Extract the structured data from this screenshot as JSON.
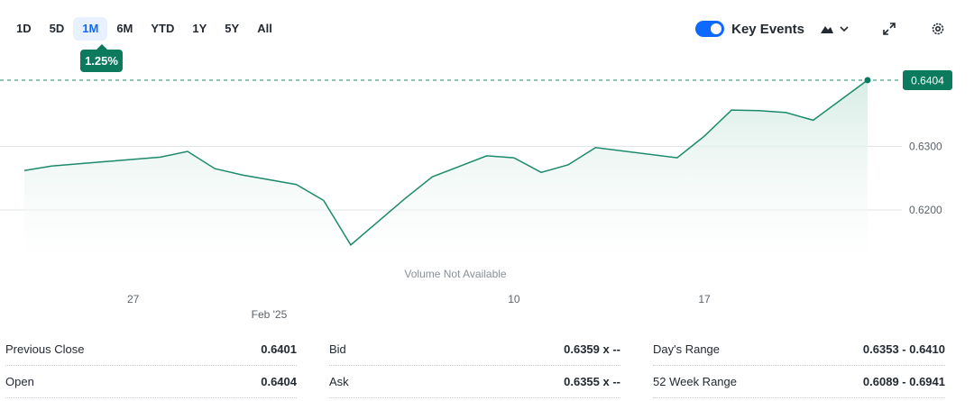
{
  "range_tabs": [
    "1D",
    "5D",
    "1M",
    "6M",
    "YTD",
    "1Y",
    "5Y",
    "All"
  ],
  "active_range": "1M",
  "change_badge": "1.25%",
  "key_events": {
    "label": "Key Events",
    "enabled": true
  },
  "icons": {
    "chart_type": "mountain-chart-icon",
    "expand": "expand-icon",
    "settings": "gear-icon"
  },
  "colors": {
    "line": "#1b8a6b",
    "accent": "#0f69ff",
    "badge": "#0b7a5d",
    "fill_top": "#d5ebe3"
  },
  "volume_note": "Volume Not Available",
  "chart_data": {
    "type": "area",
    "x": [
      "2025-01-23",
      "2025-01-24",
      "2025-01-26",
      "2025-01-28",
      "2025-01-29",
      "2025-01-30",
      "2025-01-31",
      "2025-02-02",
      "2025-02-03",
      "2025-02-04",
      "2025-02-06",
      "2025-02-07",
      "2025-02-09",
      "2025-02-10",
      "2025-02-11",
      "2025-02-12",
      "2025-02-13",
      "2025-02-16",
      "2025-02-17",
      "2025-02-18",
      "2025-02-19",
      "2025-02-20",
      "2025-02-21",
      "2025-02-23"
    ],
    "values": [
      0.6262,
      0.6269,
      0.6276,
      0.6283,
      0.6292,
      0.6265,
      0.6255,
      0.624,
      0.6215,
      0.6145,
      0.6218,
      0.6252,
      0.6285,
      0.6282,
      0.6259,
      0.6271,
      0.6298,
      0.6282,
      0.6316,
      0.6357,
      0.6356,
      0.6353,
      0.6341,
      0.6404
    ],
    "y_ticks": [
      "0.6300",
      "0.6200"
    ],
    "x_ticks": [
      {
        "label": "27",
        "x": "2025-01-27"
      },
      {
        "label": "Feb '25",
        "x": "2025-02-01"
      },
      {
        "label": "10",
        "x": "2025-02-10"
      },
      {
        "label": "17",
        "x": "2025-02-17"
      }
    ],
    "ylim": [
      0.6105,
      0.6445
    ],
    "last_value_label": "0.6404",
    "grid": true
  },
  "stats": {
    "col1": [
      {
        "label": "Previous Close",
        "value": "0.6401"
      },
      {
        "label": "Open",
        "value": "0.6404"
      }
    ],
    "col2": [
      {
        "label": "Bid",
        "value": "0.6359 x --"
      },
      {
        "label": "Ask",
        "value": "0.6355 x --"
      }
    ],
    "col3": [
      {
        "label": "Day's Range",
        "value": "0.6353 - 0.6410"
      },
      {
        "label": "52 Week Range",
        "value": "0.6089 - 0.6941"
      }
    ]
  }
}
